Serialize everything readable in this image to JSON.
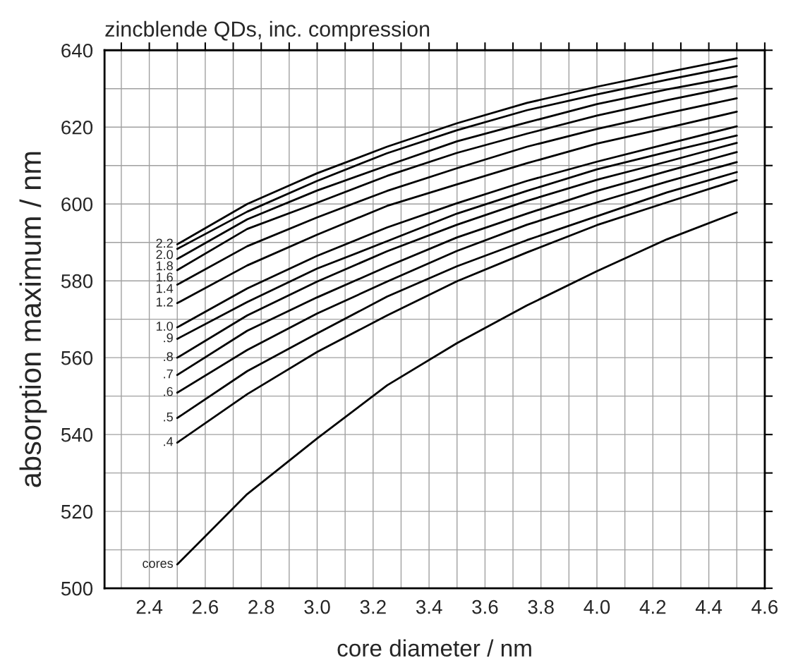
{
  "chart_data": {
    "type": "line",
    "title": "zincblende QDs, inc. compression",
    "xlabel": "core diameter / nm",
    "ylabel": "absorption maximum / nm",
    "x": [
      2.5,
      2.75,
      3.0,
      3.25,
      3.5,
      3.75,
      4.0,
      4.25,
      4.5
    ],
    "series": [
      {
        "name": "2.2",
        "color": "#000000",
        "values": [
          589.5,
          600,
          608,
          614.9,
          621.0,
          626.3,
          630.5,
          634.3,
          637.9
        ]
      },
      {
        "name": "2.0",
        "color": "#000000",
        "values": [
          588.3,
          598,
          606,
          613.2,
          619.2,
          624.4,
          628.5,
          632.3,
          635.9
        ]
      },
      {
        "name": "1.8",
        "color": "#000000",
        "values": [
          585.7,
          596,
          603.5,
          610.0,
          616.3,
          621.2,
          626,
          629.8,
          633.2
        ]
      },
      {
        "name": "1.6",
        "color": "#000000",
        "values": [
          582.8,
          593.5,
          600.3,
          607.3,
          613.3,
          618.3,
          623,
          627,
          630.7
        ]
      },
      {
        "name": "1.4",
        "color": "#000000",
        "values": [
          579.0,
          589,
          596.5,
          603.4,
          609.3,
          614.9,
          619.5,
          623.6,
          627.5
        ]
      },
      {
        "name": "1.2",
        "color": "#000000",
        "values": [
          574.2,
          584,
          592,
          599.5,
          605.1,
          610.6,
          615.7,
          619.8,
          624.0
        ]
      },
      {
        "name": "1.0",
        "color": "#000000",
        "values": [
          567.9,
          578,
          586.5,
          593.9,
          600.2,
          606.0,
          611,
          615.6,
          620.2
        ]
      },
      {
        "name": ".9",
        "color": "#000000",
        "values": [
          564.9,
          574.5,
          583.2,
          590.3,
          597.5,
          603.4,
          609,
          613.5,
          617.8
        ]
      },
      {
        "name": ".8",
        "color": "#000000",
        "values": [
          560.0,
          571,
          579.8,
          587.7,
          594.6,
          600.8,
          606.3,
          611,
          615.9
        ]
      },
      {
        "name": ".7",
        "color": "#000000",
        "values": [
          555.5,
          567,
          575.7,
          583.7,
          591.3,
          597.5,
          603.4,
          608.5,
          613.5
        ]
      },
      {
        "name": ".6",
        "color": "#000000",
        "values": [
          550.9,
          562,
          571.5,
          579.8,
          587.8,
          594.6,
          600.4,
          605.8,
          610.9
        ]
      },
      {
        "name": ".5",
        "color": "#000000",
        "values": [
          544.3,
          556.5,
          566.3,
          575.9,
          583.8,
          590.6,
          596.8,
          603,
          608.3
        ]
      },
      {
        "name": ".4",
        "color": "#000000",
        "values": [
          537.9,
          550.5,
          561.5,
          571.0,
          579.9,
          587.4,
          594.5,
          600.4,
          606.2
        ]
      },
      {
        "name": "cores",
        "color": "#000000",
        "values": [
          506.2,
          524.5,
          539,
          552.8,
          563.8,
          573.6,
          582.5,
          590.8,
          597.8
        ]
      }
    ],
    "xlim": [
      2.24,
      4.6
    ],
    "xticks": [
      {
        "value": 2.3,
        "label": null
      },
      2.4,
      {
        "value": 2.5,
        "label": null
      },
      2.6,
      {
        "value": 2.7,
        "label": null
      },
      2.8,
      {
        "value": 2.9,
        "label": null
      },
      {
        "value": 3.0,
        "label": "3.0"
      },
      {
        "value": 3.1,
        "label": null
      },
      3.2,
      {
        "value": 3.3,
        "label": null
      },
      3.4,
      {
        "value": 3.5,
        "label": null
      },
      3.6,
      {
        "value": 3.7,
        "label": null
      },
      3.8,
      {
        "value": 3.9,
        "label": null
      },
      {
        "value": 4.0,
        "label": "4.0"
      },
      {
        "value": 4.1,
        "label": null
      },
      4.2,
      {
        "value": 4.3,
        "label": null
      },
      4.4,
      {
        "value": 4.5,
        "label": null
      },
      4.6
    ],
    "ylim": [
      500,
      640
    ],
    "yticks": [
      500,
      {
        "value": 510,
        "label": null
      },
      520,
      {
        "value": 530,
        "label": null
      },
      540,
      {
        "value": 550,
        "label": null
      },
      560,
      {
        "value": 570,
        "label": null
      },
      580,
      {
        "value": 590,
        "label": null
      },
      600,
      {
        "value": 610,
        "label": null
      },
      620,
      {
        "value": 630,
        "label": null
      },
      640
    ],
    "grid": true,
    "legend": false,
    "marker": "none",
    "line_style": "solid"
  }
}
